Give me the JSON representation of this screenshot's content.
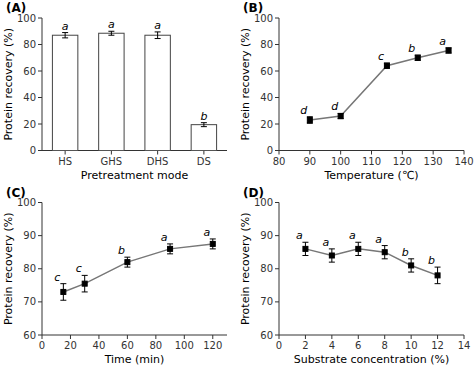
{
  "chart_data": [
    {
      "type": "bar",
      "title": "(A)",
      "categories": [
        "HS",
        "GHS",
        "DHS",
        "DS"
      ],
      "values": [
        87.0,
        88.5,
        87.0,
        19.5
      ],
      "errors": [
        2.0,
        1.5,
        2.5,
        1.5
      ],
      "annotations": [
        "a",
        "a",
        "a",
        "b"
      ],
      "xlabel": "Pretreatment mode",
      "ylabel": "Protein recovery (%)",
      "ylim": [
        0,
        100
      ],
      "yticks": [
        0,
        20,
        40,
        60,
        80,
        100
      ],
      "color": "#ffffff"
    },
    {
      "type": "line",
      "title": "(B)",
      "x": [
        90,
        100,
        115,
        125,
        135
      ],
      "values": [
        23.0,
        26.0,
        64.0,
        70.0,
        75.5
      ],
      "errors": [
        2.5,
        2.0,
        2.0,
        2.0,
        2.0
      ],
      "annotations": [
        "d",
        "d",
        "c",
        "b",
        "a"
      ],
      "xlabel": "Temperature (℃)",
      "ylabel": "Protein recovery (%)",
      "xlim": [
        80,
        140
      ],
      "xticks": [
        80,
        90,
        100,
        110,
        120,
        130,
        140
      ],
      "ylim": [
        0,
        100
      ],
      "yticks": [
        0,
        20,
        40,
        60,
        80,
        100
      ],
      "color": "#777777",
      "marker": "square"
    },
    {
      "type": "line",
      "title": "(C)",
      "x": [
        15,
        30,
        60,
        90,
        120
      ],
      "values": [
        73.0,
        75.5,
        82.0,
        86.0,
        87.5
      ],
      "errors": [
        2.5,
        2.5,
        1.5,
        1.5,
        1.5
      ],
      "annotations": [
        "c",
        "c",
        "b",
        "a",
        "a"
      ],
      "xlabel": "Time (min)",
      "ylabel": "Protein recovery (%)",
      "xlim": [
        0,
        130
      ],
      "xticks": [
        0,
        20,
        40,
        60,
        80,
        100,
        120
      ],
      "ylim": [
        60,
        100
      ],
      "yticks": [
        60,
        70,
        80,
        90,
        100
      ],
      "color": "#777777",
      "marker": "square"
    },
    {
      "type": "line",
      "title": "(D)",
      "x": [
        2,
        4,
        6,
        8,
        10,
        12
      ],
      "values": [
        86.0,
        84.0,
        86.0,
        85.0,
        81.0,
        78.0
      ],
      "errors": [
        2.0,
        2.0,
        2.0,
        2.0,
        2.0,
        2.5
      ],
      "annotations": [
        "a",
        "a",
        "a",
        "a",
        "b",
        "b"
      ],
      "xlabel": "Substrate concentration (%)",
      "ylabel": "Protein recovery (%)",
      "xlim": [
        0,
        14
      ],
      "xticks": [
        0,
        2,
        4,
        6,
        8,
        10,
        12,
        14
      ],
      "ylim": [
        60,
        100
      ],
      "yticks": [
        60,
        70,
        80,
        90,
        100
      ],
      "color": "#777777",
      "marker": "square"
    }
  ]
}
